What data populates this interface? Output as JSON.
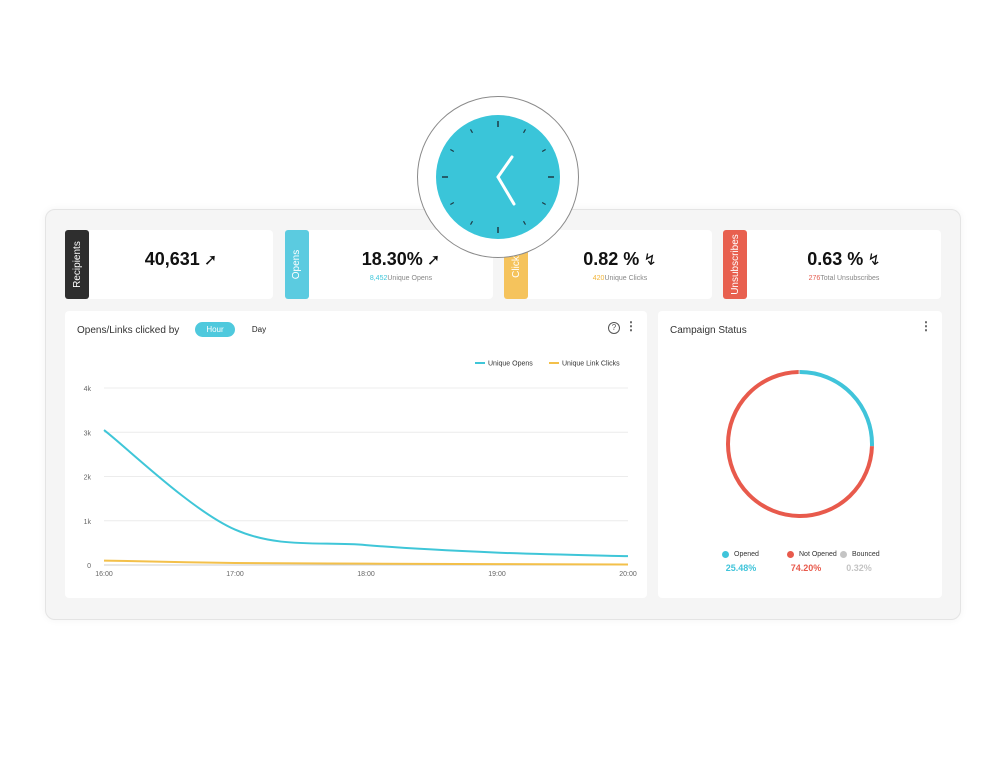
{
  "stats": [
    {
      "tab_label": "Recipients",
      "value": "40,631",
      "trend": "up",
      "sub_count": "",
      "sub_label": "",
      "color": "#2e2e2e",
      "count_color": "#333333"
    },
    {
      "tab_label": "Opens",
      "value": "18.30%",
      "trend": "up",
      "sub_count": "8,452",
      "sub_label": "Unique Opens",
      "color": "#5bcbe0",
      "count_color": "#3cc6da"
    },
    {
      "tab_label": "Clicks",
      "value": "0.82 %",
      "trend": "down",
      "sub_count": "420",
      "sub_label": "Unique Clicks",
      "color": "#f5c35c",
      "count_color": "#f2b53a"
    },
    {
      "tab_label": "Unsubscribes",
      "value": "0.63 %",
      "trend": "down",
      "sub_count": "276",
      "sub_label": "Total Unsubscribes",
      "color": "#e8604f",
      "count_color": "#e45d50"
    }
  ],
  "line_panel": {
    "title": "Opens/Links clicked by",
    "toggle": {
      "active": "Hour",
      "inactive": "Day"
    },
    "help_icon": "question-circle-icon",
    "menu_icon": "kebab-menu-icon"
  },
  "status_panel": {
    "title": "Campaign Status",
    "menu_icon": "kebab-menu-icon"
  },
  "chart_data": [
    {
      "type": "line",
      "x": [
        "16:00",
        "17:00",
        "18:00",
        "19:00",
        "20:00"
      ],
      "ylim": [
        0,
        4000
      ],
      "yticks": [
        "0",
        "1k",
        "2k",
        "3k",
        "4k"
      ],
      "grid": true,
      "legend_position": "top-right",
      "series": [
        {
          "name": "Unique Opens",
          "color": "#3fc6d8",
          "values": [
            3050,
            800,
            450,
            280,
            200
          ]
        },
        {
          "name": "Unique Link Clicks",
          "color": "#f3c04a",
          "values": [
            100,
            45,
            30,
            20,
            10
          ]
        }
      ]
    },
    {
      "type": "pie",
      "style": "donut-ring",
      "legend_position": "bottom",
      "series": [
        {
          "name": "Opened",
          "value": 25.48,
          "label": "25.48%",
          "color": "#40c4da"
        },
        {
          "name": "Not Opened",
          "value": 74.2,
          "label": "74.20%",
          "color": "#e85a4c"
        },
        {
          "name": "Bounced",
          "value": 0.32,
          "label": "0.32%",
          "color": "#c4c4c4"
        }
      ]
    }
  ],
  "overlay": {
    "icon": "clock-icon",
    "face_color": "#3ac5d9"
  }
}
